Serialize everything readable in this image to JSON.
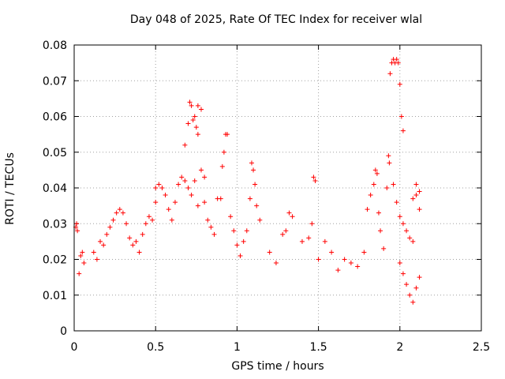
{
  "chart_data": {
    "type": "scatter",
    "title": "Day 048 of 2025, Rate Of TEC Index for receiver wlal",
    "xlabel": "GPS time / hours",
    "ylabel": "ROTI / TECUs",
    "xlim": [
      0,
      2.5
    ],
    "ylim": [
      0,
      0.08
    ],
    "xticks": [
      0,
      0.5,
      1,
      1.5,
      2,
      2.5
    ],
    "xtick_labels": [
      "0",
      "0.5",
      "1",
      "1.5",
      "2",
      "2.5"
    ],
    "yticks": [
      0,
      0.01,
      0.02,
      0.03,
      0.04,
      0.05,
      0.06,
      0.07,
      0.08
    ],
    "ytick_labels": [
      "0",
      "0.01",
      "0.02",
      "0.03",
      "0.04",
      "0.05",
      "0.06",
      "0.07",
      "0.08"
    ],
    "grid": true,
    "marker": "+",
    "color": "#ff0000",
    "series": [
      {
        "name": "ROTI",
        "points": [
          [
            0.01,
            0.029
          ],
          [
            0.015,
            0.03
          ],
          [
            0.02,
            0.028
          ],
          [
            0.03,
            0.016
          ],
          [
            0.04,
            0.021
          ],
          [
            0.05,
            0.022
          ],
          [
            0.06,
            0.019
          ],
          [
            0.12,
            0.022
          ],
          [
            0.14,
            0.02
          ],
          [
            0.16,
            0.025
          ],
          [
            0.18,
            0.024
          ],
          [
            0.2,
            0.027
          ],
          [
            0.22,
            0.029
          ],
          [
            0.24,
            0.031
          ],
          [
            0.26,
            0.033
          ],
          [
            0.28,
            0.034
          ],
          [
            0.3,
            0.033
          ],
          [
            0.32,
            0.03
          ],
          [
            0.34,
            0.026
          ],
          [
            0.36,
            0.024
          ],
          [
            0.38,
            0.025
          ],
          [
            0.4,
            0.022
          ],
          [
            0.42,
            0.027
          ],
          [
            0.44,
            0.03
          ],
          [
            0.46,
            0.032
          ],
          [
            0.48,
            0.031
          ],
          [
            0.5,
            0.036
          ],
          [
            0.5,
            0.04
          ],
          [
            0.52,
            0.041
          ],
          [
            0.54,
            0.04
          ],
          [
            0.56,
            0.038
          ],
          [
            0.58,
            0.034
          ],
          [
            0.6,
            0.031
          ],
          [
            0.62,
            0.036
          ],
          [
            0.64,
            0.041
          ],
          [
            0.66,
            0.043
          ],
          [
            0.68,
            0.042
          ],
          [
            0.68,
            0.052
          ],
          [
            0.7,
            0.058
          ],
          [
            0.71,
            0.064
          ],
          [
            0.72,
            0.063
          ],
          [
            0.73,
            0.059
          ],
          [
            0.74,
            0.06
          ],
          [
            0.75,
            0.057
          ],
          [
            0.76,
            0.055
          ],
          [
            0.76,
            0.063
          ],
          [
            0.78,
            0.062
          ],
          [
            0.7,
            0.04
          ],
          [
            0.72,
            0.038
          ],
          [
            0.74,
            0.042
          ],
          [
            0.76,
            0.035
          ],
          [
            0.78,
            0.045
          ],
          [
            0.8,
            0.043
          ],
          [
            0.8,
            0.036
          ],
          [
            0.82,
            0.031
          ],
          [
            0.84,
            0.029
          ],
          [
            0.86,
            0.027
          ],
          [
            0.88,
            0.037
          ],
          [
            0.9,
            0.037
          ],
          [
            0.91,
            0.046
          ],
          [
            0.92,
            0.05
          ],
          [
            0.93,
            0.055
          ],
          [
            0.94,
            0.055
          ],
          [
            0.96,
            0.032
          ],
          [
            0.98,
            0.028
          ],
          [
            1.0,
            0.024
          ],
          [
            1.02,
            0.021
          ],
          [
            1.04,
            0.025
          ],
          [
            1.06,
            0.028
          ],
          [
            1.08,
            0.037
          ],
          [
            1.09,
            0.047
          ],
          [
            1.1,
            0.045
          ],
          [
            1.11,
            0.041
          ],
          [
            1.12,
            0.035
          ],
          [
            1.14,
            0.031
          ],
          [
            1.2,
            0.022
          ],
          [
            1.24,
            0.019
          ],
          [
            1.28,
            0.027
          ],
          [
            1.3,
            0.028
          ],
          [
            1.32,
            0.033
          ],
          [
            1.34,
            0.032
          ],
          [
            1.4,
            0.025
          ],
          [
            1.44,
            0.026
          ],
          [
            1.46,
            0.03
          ],
          [
            1.47,
            0.043
          ],
          [
            1.48,
            0.042
          ],
          [
            1.5,
            0.02
          ],
          [
            1.54,
            0.025
          ],
          [
            1.58,
            0.022
          ],
          [
            1.62,
            0.017
          ],
          [
            1.66,
            0.02
          ],
          [
            1.7,
            0.019
          ],
          [
            1.74,
            0.018
          ],
          [
            1.78,
            0.022
          ],
          [
            1.8,
            0.034
          ],
          [
            1.82,
            0.038
          ],
          [
            1.84,
            0.041
          ],
          [
            1.85,
            0.045
          ],
          [
            1.86,
            0.044
          ],
          [
            1.87,
            0.033
          ],
          [
            1.88,
            0.028
          ],
          [
            1.9,
            0.023
          ],
          [
            1.92,
            0.04
          ],
          [
            1.93,
            0.049
          ],
          [
            1.935,
            0.047
          ],
          [
            1.94,
            0.072
          ],
          [
            1.95,
            0.075
          ],
          [
            1.96,
            0.076
          ],
          [
            1.97,
            0.075
          ],
          [
            1.98,
            0.076
          ],
          [
            1.99,
            0.075
          ],
          [
            2.0,
            0.069
          ],
          [
            2.01,
            0.06
          ],
          [
            2.02,
            0.056
          ],
          [
            1.96,
            0.041
          ],
          [
            1.98,
            0.036
          ],
          [
            2.0,
            0.032
          ],
          [
            2.02,
            0.03
          ],
          [
            2.04,
            0.028
          ],
          [
            2.06,
            0.026
          ],
          [
            2.08,
            0.025
          ],
          [
            2.08,
            0.037
          ],
          [
            2.1,
            0.038
          ],
          [
            2.1,
            0.041
          ],
          [
            2.12,
            0.039
          ],
          [
            2.12,
            0.034
          ],
          [
            2.0,
            0.019
          ],
          [
            2.02,
            0.016
          ],
          [
            2.04,
            0.013
          ],
          [
            2.06,
            0.01
          ],
          [
            2.08,
            0.008
          ],
          [
            2.1,
            0.012
          ],
          [
            2.12,
            0.015
          ]
        ]
      }
    ]
  }
}
